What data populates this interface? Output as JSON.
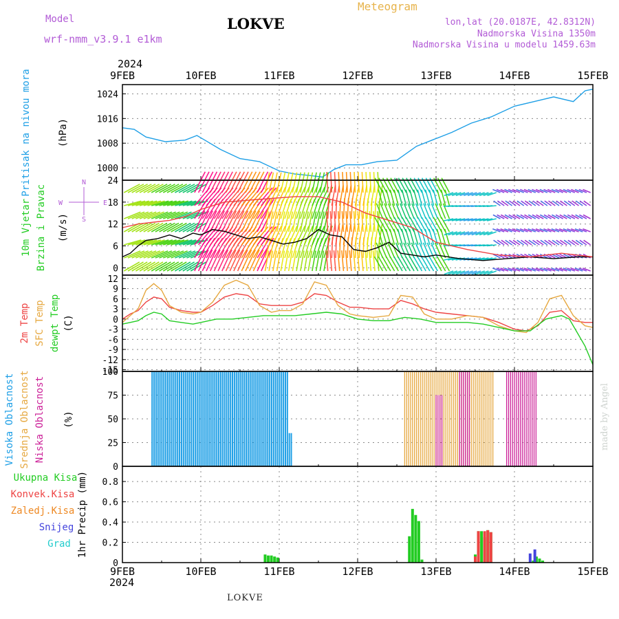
{
  "header": {
    "model_label": "Model",
    "model_name": "wrf-nmm_v3.9.1 e1km",
    "station": "LOKVE",
    "title": "Meteogram",
    "lonlat": "lon,lat (20.0187E, 42.8312N)",
    "elevation": "Nadmorska Visina 1350m",
    "model_elevation": "Nadmorska Visina u modelu 1459.63m",
    "year": "2024"
  },
  "footer": {
    "station": "LOKVE",
    "credit": "made by Angel"
  },
  "colors": {
    "pressure": "#1e9fe6",
    "temp2m": "#ee4444",
    "sfc": "#e6a840",
    "dewpt": "#22cc22",
    "high": "#1e9fe6",
    "middle": "#e6a840",
    "low": "#cc2299",
    "precip_total": "#22cc22",
    "precip_conv": "#ee4444",
    "precip_frozen": "#ee8822",
    "snow": "#4444dd",
    "hail": "#22cccc",
    "wind_line": "#000000"
  },
  "chart_data": [
    {
      "id": "pressure",
      "type": "line",
      "ylabel": [
        "Pritisak na nivou mora",
        "(hPa)"
      ],
      "yticks": [
        1000,
        1008,
        1016,
        1024
      ],
      "ylim": [
        996,
        1027
      ],
      "x_days": [
        "9FEB",
        "10FEB",
        "11FEB",
        "12FEB",
        "13FEB",
        "14FEB",
        "15FEB"
      ],
      "grid": true,
      "series": [
        {
          "color": "pressure",
          "x": [
            0,
            0.15,
            0.3,
            0.55,
            0.8,
            0.95,
            1.05,
            1.25,
            1.5,
            1.75,
            2.0,
            2.2,
            2.4,
            2.55,
            2.7,
            2.85,
            3.05,
            3.25,
            3.5,
            3.75,
            3.95,
            4.2,
            4.45,
            4.7,
            5.0,
            5.25,
            5.5,
            5.75,
            5.9,
            6.0
          ],
          "y": [
            1013,
            1012.5,
            1010,
            1008.5,
            1009,
            1010.5,
            1009,
            1006,
            1003,
            1002,
            999,
            998,
            997.5,
            997,
            999.5,
            1001,
            1001,
            1002,
            1002.5,
            1007,
            1009,
            1011.5,
            1014.5,
            1016.5,
            1020,
            1021.5,
            1023,
            1021.5,
            1025,
            1025.5
          ]
        }
      ]
    },
    {
      "id": "wind",
      "type": "line",
      "ylabel": [
        "10m Vjetar",
        "Brzina i Pravac",
        "(m/s)"
      ],
      "yticks": [
        0,
        6,
        12,
        18,
        24
      ],
      "ylim": [
        -2,
        24
      ],
      "compass": [
        "N",
        "W",
        "E",
        "S"
      ],
      "grid": true,
      "series": [
        {
          "color": "wind_line",
          "x": [
            0,
            0.1,
            0.2,
            0.3,
            0.45,
            0.6,
            0.75,
            0.9,
            1.0,
            1.15,
            1.3,
            1.45,
            1.6,
            1.75,
            1.9,
            2.05,
            2.2,
            2.35,
            2.5,
            2.65,
            2.8,
            2.95,
            3.1,
            3.25,
            3.4,
            3.55,
            3.7,
            3.85,
            4.0,
            4.3,
            4.6,
            4.9,
            5.2,
            5.5,
            5.8,
            6.0
          ],
          "y": [
            3,
            4,
            6,
            7.5,
            8,
            9,
            8,
            9.5,
            9,
            10.5,
            10,
            9,
            8,
            8.5,
            7.5,
            6.5,
            7,
            8,
            10.5,
            9,
            8.5,
            5,
            4.5,
            5.5,
            7,
            4,
            3.5,
            3,
            3.5,
            2.5,
            2,
            2.5,
            3,
            2.5,
            3,
            3
          ]
        },
        {
          "color": "temp2m",
          "x": [
            0,
            0.2,
            0.4,
            0.6,
            0.8,
            1.0,
            1.3,
            1.6,
            1.9,
            2.2,
            2.5,
            2.8,
            3.1,
            3.4,
            3.7,
            4.0,
            4.4,
            4.8,
            5.2,
            5.6,
            6.0
          ],
          "y": [
            11,
            12,
            12.5,
            13,
            14,
            16,
            18,
            18.5,
            19,
            19.5,
            19.5,
            18,
            15,
            13,
            11,
            7,
            5,
            3.5,
            3,
            4,
            3
          ]
        }
      ]
    },
    {
      "id": "temperature",
      "type": "line",
      "ylabel": [
        "2m Temp",
        "SFC Temp",
        "dewpt Temp",
        "(C)"
      ],
      "yticks": [
        12,
        9,
        6,
        3,
        0,
        -3,
        -6,
        -9,
        -12,
        -15
      ],
      "ylim": [
        -15.5,
        13
      ],
      "grid": true,
      "series": [
        {
          "color": "temp2m",
          "x": [
            0,
            0.1,
            0.2,
            0.3,
            0.4,
            0.5,
            0.6,
            0.75,
            0.9,
            1.0,
            1.15,
            1.3,
            1.45,
            1.6,
            1.75,
            1.9,
            2.0,
            2.15,
            2.3,
            2.45,
            2.6,
            2.75,
            2.9,
            3.0,
            3.2,
            3.4,
            3.55,
            3.7,
            3.85,
            4.0,
            4.2,
            4.4,
            4.6,
            4.8,
            5.0,
            5.15,
            5.3,
            5.45,
            5.6,
            5.75,
            5.9,
            6.0
          ],
          "y": [
            0,
            1.5,
            2.5,
            5,
            6.5,
            6,
            3.5,
            2.5,
            2,
            2,
            4,
            6.5,
            7.5,
            7,
            4.5,
            4,
            4,
            4,
            5,
            7.5,
            7,
            5,
            3.5,
            3.5,
            3,
            3,
            5.5,
            4.5,
            3,
            2,
            1.5,
            1,
            0.5,
            -1,
            -3,
            -3.5,
            -2,
            2,
            2.5,
            -0.5,
            -1,
            -1
          ]
        },
        {
          "color": "sfc",
          "x": [
            0,
            0.1,
            0.2,
            0.3,
            0.4,
            0.5,
            0.6,
            0.75,
            0.9,
            1.0,
            1.15,
            1.3,
            1.45,
            1.6,
            1.75,
            1.9,
            2.0,
            2.15,
            2.3,
            2.45,
            2.6,
            2.75,
            2.9,
            3.0,
            3.2,
            3.4,
            3.55,
            3.7,
            3.85,
            4.0,
            4.2,
            4.4,
            4.6,
            4.8,
            5.0,
            5.15,
            5.3,
            5.45,
            5.6,
            5.75,
            5.9,
            6.0
          ],
          "y": [
            -1,
            1,
            3,
            8.5,
            10.5,
            8.5,
            4,
            2,
            1.5,
            2,
            5,
            10,
            11.5,
            10,
            4,
            2,
            2.5,
            2.5,
            4.5,
            11,
            10,
            4,
            1.5,
            1,
            0.5,
            1,
            7,
            6.5,
            1.5,
            0,
            0,
            1,
            0.5,
            -2,
            -3.5,
            -4,
            -1,
            6,
            7,
            1,
            -2,
            -2.5
          ]
        },
        {
          "color": "dewpt",
          "x": [
            0,
            0.1,
            0.2,
            0.3,
            0.4,
            0.5,
            0.6,
            0.75,
            0.9,
            1.0,
            1.2,
            1.4,
            1.6,
            1.8,
            2.0,
            2.2,
            2.4,
            2.6,
            2.8,
            3.0,
            3.2,
            3.4,
            3.6,
            3.8,
            4.0,
            4.2,
            4.4,
            4.6,
            4.8,
            5.0,
            5.2,
            5.4,
            5.6,
            5.7,
            5.8,
            5.9,
            6.0
          ],
          "y": [
            -1.5,
            -1,
            -0.5,
            1,
            2,
            1.5,
            -0.5,
            -1,
            -1.5,
            -1,
            0,
            0,
            0.5,
            1,
            1,
            1,
            1.5,
            2,
            1.5,
            0,
            -0.5,
            -0.5,
            0.5,
            0,
            -1,
            -1,
            -1,
            -1.5,
            -2.5,
            -3.5,
            -3.5,
            0,
            1,
            0,
            -4,
            -8,
            -13.5
          ]
        }
      ]
    },
    {
      "id": "cloud",
      "type": "bar",
      "ylabel": [
        "Visoka Oblacnost",
        "Srednja Oblacnost",
        "Niska Oblacnost",
        "(%)"
      ],
      "yticks": [
        0,
        25,
        50,
        75,
        100
      ],
      "ylim": [
        0,
        100
      ],
      "grid": true,
      "series": [
        {
          "name": "Visoka Oblacnost",
          "color": "high",
          "ranges": [
            [
              0.37,
              2.12,
              100
            ],
            [
              2.12,
              2.16,
              35
            ]
          ]
        },
        {
          "name": "Srednja Oblacnost",
          "color": "middle",
          "ranges": [
            [
              3.6,
              4.6,
              100
            ],
            [
              4.6,
              4.75,
              100
            ]
          ]
        },
        {
          "name": "Niska Oblacnost",
          "color": "low",
          "ranges": [
            [
              4.0,
              4.1,
              75
            ],
            [
              4.3,
              4.45,
              100
            ],
            [
              4.9,
              5.3,
              100
            ]
          ]
        }
      ]
    },
    {
      "id": "precip",
      "type": "bar",
      "ylabel": [
        "1hr Precip (mm)"
      ],
      "legend": [
        "Ukupna Kisa",
        "Konvek.Kisa",
        "Zaledj.Kisa",
        "Snijeg",
        "Grad"
      ],
      "yticks": [
        0,
        0.2,
        0.4,
        0.6,
        0.8
      ],
      "ylim": [
        0,
        0.95
      ],
      "grid": true,
      "series": [
        {
          "name": "Ukupna Kisa",
          "color": "precip_total",
          "x": [
            1.82,
            1.86,
            1.9,
            1.94,
            1.98,
            3.66,
            3.7,
            3.74,
            3.78,
            3.82,
            4.5,
            4.54,
            4.58,
            4.62,
            4.66,
            4.7,
            5.24,
            5.28,
            5.32,
            5.36
          ],
          "y": [
            0.08,
            0.07,
            0.07,
            0.06,
            0.05,
            0.26,
            0.53,
            0.47,
            0.41,
            0.03,
            0.08,
            0.31,
            0.31,
            0.25,
            0.32,
            0.3,
            0.02,
            0.06,
            0.04,
            0.02
          ]
        },
        {
          "name": "Konvek.Kisa",
          "color": "precip_conv",
          "x": [
            4.5,
            4.54,
            4.62,
            4.66,
            4.7
          ],
          "y": [
            0.06,
            0.31,
            0.31,
            0.32,
            0.3
          ]
        },
        {
          "name": "Snijeg",
          "color": "snow",
          "x": [
            5.2,
            5.26
          ],
          "y": [
            0.09,
            0.13
          ]
        }
      ]
    }
  ]
}
